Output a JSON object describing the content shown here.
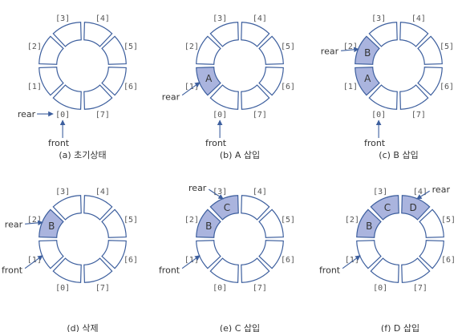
{
  "colors": {
    "outline": "#3d5f9e",
    "filled": "#aab4de",
    "empty": "#ffffff",
    "text": "#333333",
    "index_text": "#555555"
  },
  "index_labels": [
    "[0]",
    "[1]",
    "[2]",
    "[3]",
    "[4]",
    "[5]",
    "[6]",
    "[7]"
  ],
  "panels": [
    {
      "caption": "(a) 초기상태",
      "cells": {},
      "pointers": [
        {
          "label": "rear",
          "target": "0-left"
        },
        {
          "label": "front",
          "target": "0-below"
        }
      ]
    },
    {
      "caption": "(b) A 삽입",
      "cells": {
        "1": "A"
      },
      "pointers": [
        {
          "label": "rear",
          "target": "1"
        },
        {
          "label": "front",
          "target": "0-below"
        }
      ]
    },
    {
      "caption": "(c) B 삽입",
      "cells": {
        "1": "A",
        "2": "B"
      },
      "pointers": [
        {
          "label": "rear",
          "target": "2"
        },
        {
          "label": "front",
          "target": "0-below"
        }
      ]
    },
    {
      "caption": "(d) 삭제",
      "cells": {
        "2": "B"
      },
      "pointers": [
        {
          "label": "rear",
          "target": "2"
        },
        {
          "label": "front",
          "target": "1"
        }
      ]
    },
    {
      "caption": "(e) C 삽입",
      "cells": {
        "2": "B",
        "3": "C"
      },
      "pointers": [
        {
          "label": "rear",
          "target": "3"
        },
        {
          "label": "front",
          "target": "1"
        }
      ]
    },
    {
      "caption": "(f) D 삽입",
      "cells": {
        "2": "B",
        "3": "C",
        "4": "D"
      },
      "pointers": [
        {
          "label": "rear",
          "target": "4"
        },
        {
          "label": "front",
          "target": "1"
        }
      ]
    }
  ]
}
